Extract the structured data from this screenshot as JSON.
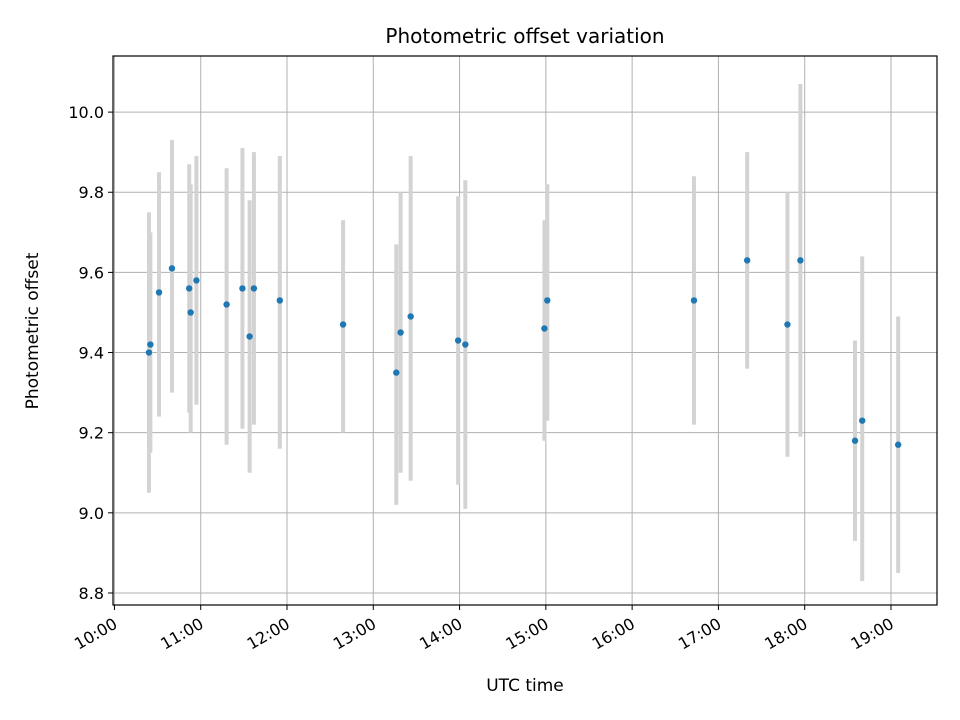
{
  "chart_data": {
    "type": "scatter",
    "title": "Photometric offset variation",
    "xlabel": "UTC time",
    "ylabel": "Photometric offset",
    "x_ticks": [
      "10:00",
      "11:00",
      "12:00",
      "13:00",
      "14:00",
      "15:00",
      "16:00",
      "17:00",
      "18:00",
      "19:00"
    ],
    "y_ticks": [
      "8.8",
      "9.0",
      "9.2",
      "9.4",
      "9.6",
      "9.8",
      "10.0"
    ],
    "xlim": [
      "09:59",
      "19:32"
    ],
    "ylim": [
      8.77,
      10.14
    ],
    "grid": true,
    "series": [
      {
        "marker_color": "#1f77b4",
        "errorbar_color": "#d3d3d3",
        "points": [
          {
            "x": "10:24",
            "y": 9.4,
            "ylow": 9.05,
            "yhigh": 9.75
          },
          {
            "x": "10:25",
            "y": 9.42,
            "ylow": 9.15,
            "yhigh": 9.7
          },
          {
            "x": "10:31",
            "y": 9.55,
            "ylow": 9.24,
            "yhigh": 9.85
          },
          {
            "x": "10:40",
            "y": 9.61,
            "ylow": 9.3,
            "yhigh": 9.93
          },
          {
            "x": "10:52",
            "y": 9.56,
            "ylow": 9.25,
            "yhigh": 9.87
          },
          {
            "x": "10:53",
            "y": 9.5,
            "ylow": 9.2,
            "yhigh": 9.82
          },
          {
            "x": "10:57",
            "y": 9.58,
            "ylow": 9.27,
            "yhigh": 9.89
          },
          {
            "x": "11:18",
            "y": 9.52,
            "ylow": 9.17,
            "yhigh": 9.86
          },
          {
            "x": "11:29",
            "y": 9.56,
            "ylow": 9.21,
            "yhigh": 9.91
          },
          {
            "x": "11:34",
            "y": 9.44,
            "ylow": 9.1,
            "yhigh": 9.78
          },
          {
            "x": "11:37",
            "y": 9.56,
            "ylow": 9.22,
            "yhigh": 9.9
          },
          {
            "x": "11:55",
            "y": 9.53,
            "ylow": 9.16,
            "yhigh": 9.89
          },
          {
            "x": "12:39",
            "y": 9.47,
            "ylow": 9.2,
            "yhigh": 9.73
          },
          {
            "x": "13:16",
            "y": 9.35,
            "ylow": 9.02,
            "yhigh": 9.67
          },
          {
            "x": "13:19",
            "y": 9.45,
            "ylow": 9.1,
            "yhigh": 9.8
          },
          {
            "x": "13:26",
            "y": 9.49,
            "ylow": 9.08,
            "yhigh": 9.89
          },
          {
            "x": "13:59",
            "y": 9.43,
            "ylow": 9.07,
            "yhigh": 9.79
          },
          {
            "x": "14:04",
            "y": 9.42,
            "ylow": 9.01,
            "yhigh": 9.83
          },
          {
            "x": "14:59",
            "y": 9.46,
            "ylow": 9.18,
            "yhigh": 9.73
          },
          {
            "x": "15:01",
            "y": 9.53,
            "ylow": 9.23,
            "yhigh": 9.82
          },
          {
            "x": "16:43",
            "y": 9.53,
            "ylow": 9.22,
            "yhigh": 9.84
          },
          {
            "x": "17:20",
            "y": 9.63,
            "ylow": 9.36,
            "yhigh": 9.9
          },
          {
            "x": "17:48",
            "y": 9.47,
            "ylow": 9.14,
            "yhigh": 9.8
          },
          {
            "x": "17:57",
            "y": 9.63,
            "ylow": 9.19,
            "yhigh": 10.07
          },
          {
            "x": "18:35",
            "y": 9.18,
            "ylow": 8.93,
            "yhigh": 9.43
          },
          {
            "x": "18:40",
            "y": 9.23,
            "ylow": 8.83,
            "yhigh": 9.64
          },
          {
            "x": "19:05",
            "y": 9.17,
            "ylow": 8.85,
            "yhigh": 9.49
          }
        ]
      }
    ]
  }
}
